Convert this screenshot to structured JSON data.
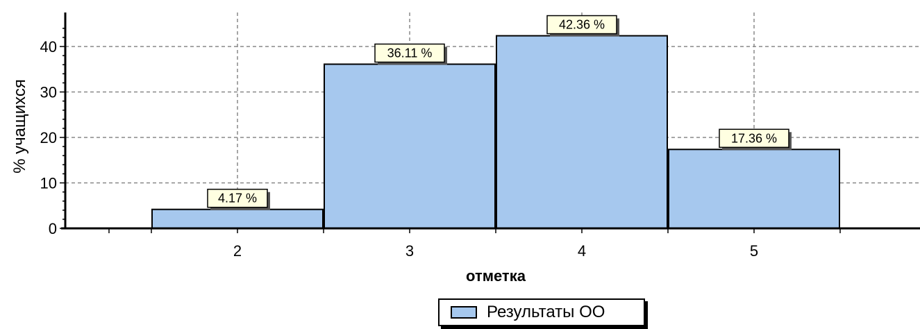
{
  "chart_data": {
    "type": "bar",
    "categories": [
      "2",
      "3",
      "4",
      "5"
    ],
    "series": [
      {
        "name": "Результаты ОО",
        "values": [
          4.17,
          36.11,
          42.36,
          17.36
        ]
      }
    ],
    "data_labels": [
      "4.17 %",
      "36.11 %",
      "42.36 %",
      "17.36 %"
    ],
    "xlabel": "отметка",
    "ylabel": "% учащихся",
    "ylim": [
      0,
      45
    ],
    "yticks": [
      0,
      10,
      20,
      30,
      40
    ],
    "grid": true,
    "legend_position": "bottom-center",
    "colors": {
      "bar_fill": "#a6c8ee",
      "bar_stroke": "#000000",
      "label_fill": "#ffffe1"
    }
  }
}
